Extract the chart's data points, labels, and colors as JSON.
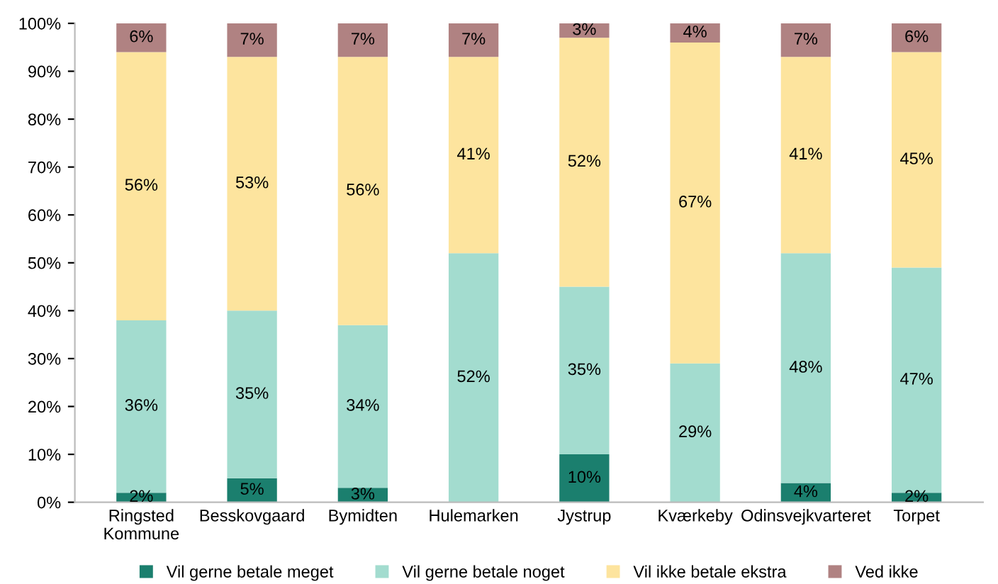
{
  "chart_data": {
    "type": "bar",
    "stacked": true,
    "categories": [
      "Ringsted\nKommune",
      "Besskovgaard",
      "Bymidten",
      "Hulemarken",
      "Jystrup",
      "Kværkeby",
      "Odinsvejkvarteret",
      "Torpet"
    ],
    "series": [
      {
        "name": "Vil gerne betale meget",
        "color": "#1b7f6e",
        "values": [
          2,
          5,
          3,
          0,
          10,
          0,
          4,
          2
        ],
        "value_labels": [
          "2%",
          "5%",
          "3%",
          null,
          "10%",
          null,
          "4%",
          "2%"
        ]
      },
      {
        "name": "Vil gerne betale noget",
        "color": "#a3dccf",
        "values": [
          36,
          35,
          34,
          52,
          35,
          29,
          48,
          47
        ],
        "value_labels": [
          "36%",
          "35%",
          "34%",
          "52%",
          "35%",
          "29%",
          "48%",
          "47%"
        ]
      },
      {
        "name": "Vil ikke betale ekstra",
        "color": "#fde49e",
        "values": [
          56,
          53,
          56,
          41,
          52,
          67,
          41,
          45
        ],
        "value_labels": [
          "56%",
          "53%",
          "56%",
          "41%",
          "52%",
          "67%",
          "41%",
          "45%"
        ]
      },
      {
        "name": "Ved ikke",
        "color": "#b08282",
        "values": [
          6,
          7,
          7,
          7,
          3,
          4,
          7,
          6
        ],
        "value_labels": [
          "6%",
          "7%",
          "7%",
          "7%",
          "3%",
          "4%",
          "7%",
          "6%"
        ]
      }
    ],
    "ylim": [
      0,
      100
    ],
    "yticks": [
      {
        "value": 0,
        "label": "0%"
      },
      {
        "value": 10,
        "label": "10%"
      },
      {
        "value": 20,
        "label": "20%"
      },
      {
        "value": 30,
        "label": "30%"
      },
      {
        "value": 40,
        "label": "40%"
      },
      {
        "value": 50,
        "label": "50%"
      },
      {
        "value": 60,
        "label": "60%"
      },
      {
        "value": 70,
        "label": "70%"
      },
      {
        "value": 80,
        "label": "80%"
      },
      {
        "value": 90,
        "label": "90%"
      },
      {
        "value": 100,
        "label": "100%"
      }
    ],
    "grid": false,
    "legend": "bottom"
  }
}
